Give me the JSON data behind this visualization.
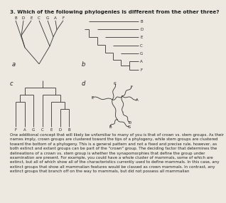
{
  "title": "3. Which of the following phylogenies is different from the other three?",
  "title_fontsize": 5.2,
  "bg_color": "#ede9e0",
  "text_color": "#222222",
  "body_text": "One additional concept that will likely be unfamiliar to many of you is that of crown vs. stem groups. As their names imply, crown groups are clustered toward the tips of a phylogeny, while stem groups are clustered toward the bottom of a phylogeny. This is a general pattern and not a fixed and precise rule, however, as both extinct and extant groups can be part of the \"crown\" group. The deciding factor that determines the delineations of a crown vs. stem group is whether the synapomorphies that define the group under examination are present. For example, you could have a whole cluster of mammals, some of which are extinct, but all of which show all of the characteristics currently used to define mammals. In this case, any extinct groups that show all mammalian features would be classed as crown mammals. In contrast, any extinct groups that branch off on the way to mammals, but did not possess all mammalian",
  "body_fontsize": 4.0,
  "label_fontsize": 6.0,
  "taxa_fontsize": 4.0,
  "lw": 0.6
}
